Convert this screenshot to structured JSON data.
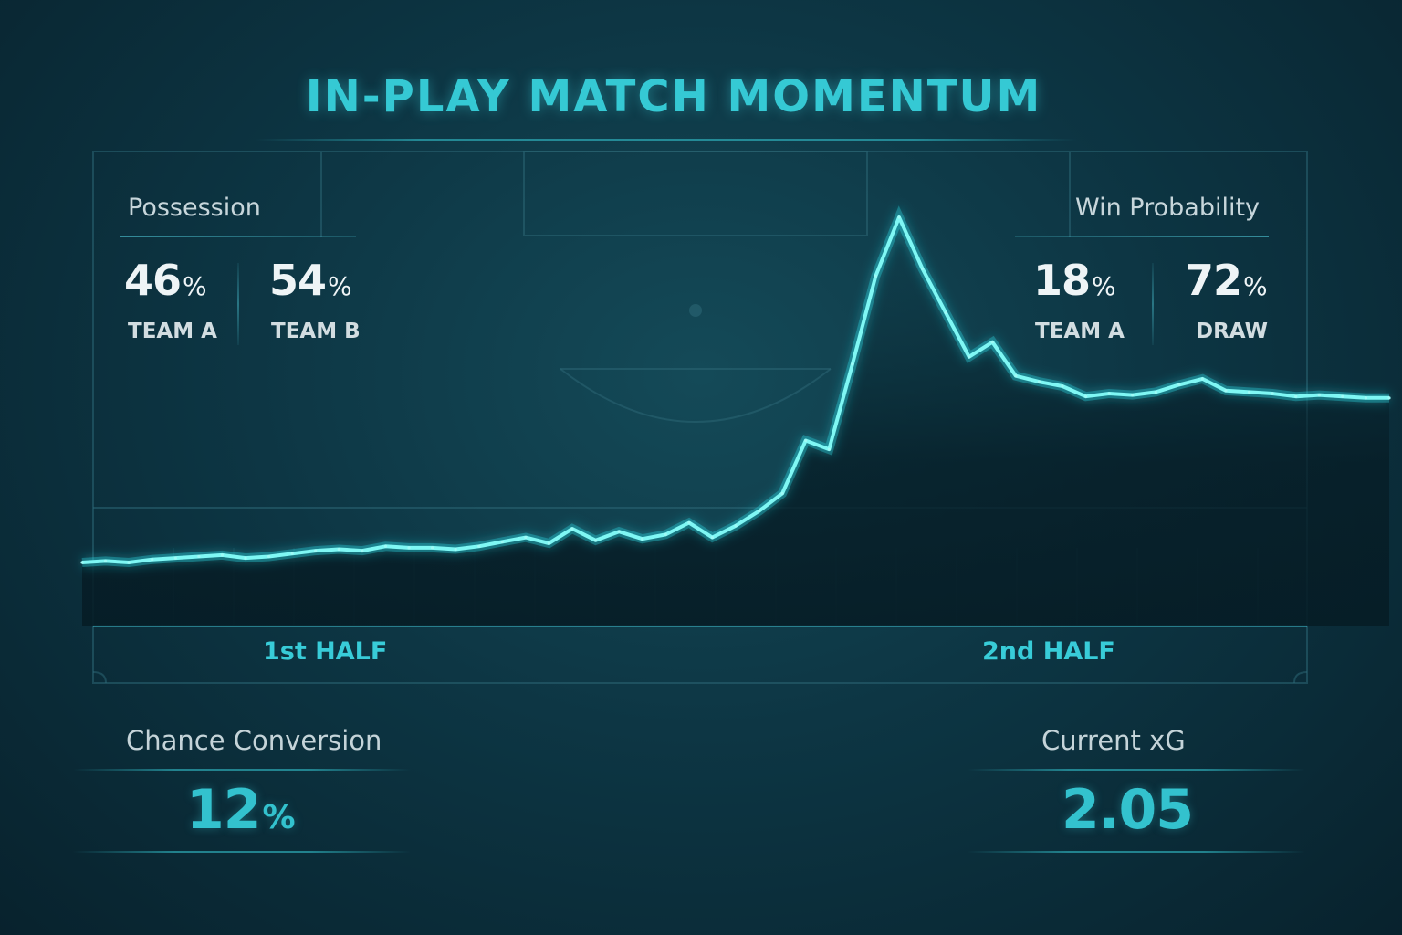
{
  "title": "IN-PLAY MATCH MOMENTUM",
  "possession": {
    "label": "Possession",
    "team_a": {
      "value": "46",
      "unit": "%",
      "name": "TEAM A"
    },
    "team_b": {
      "value": "54",
      "unit": "%",
      "name": "TEAM B"
    }
  },
  "win_probability": {
    "label": "Win Probability",
    "team_a": {
      "value": "18",
      "unit": "%",
      "name": "TEAM A"
    },
    "draw": {
      "value": "72",
      "unit": "%",
      "name": "DRAW"
    }
  },
  "halves": {
    "first": "1st HALF",
    "second": "2nd HALF"
  },
  "chance_conversion": {
    "label": "Chance Conversion",
    "value": "12",
    "unit": "%"
  },
  "current_xg": {
    "label": "Current xG",
    "value": "2.05"
  },
  "colors": {
    "accent": "#35c9d4",
    "line": "#5ff0f0",
    "background": "#0d3644"
  },
  "chart_data": {
    "type": "line",
    "title": "IN-PLAY MATCH MOMENTUM",
    "xlabel": "",
    "ylabel": "",
    "x": [
      0,
      4,
      8,
      12,
      16,
      20,
      24,
      28,
      32,
      36,
      40,
      44,
      48,
      52,
      56,
      60,
      64,
      68,
      72,
      76,
      80,
      84,
      88,
      92,
      96,
      100,
      104,
      108,
      112,
      116,
      120,
      124,
      128,
      132,
      136,
      140,
      144,
      148,
      152,
      156,
      160,
      164,
      168,
      172,
      176,
      180,
      184,
      188,
      192,
      196,
      200,
      204,
      208,
      212,
      216,
      220,
      224
    ],
    "values": [
      5,
      6,
      5,
      7,
      8,
      9,
      10,
      8,
      9,
      11,
      13,
      14,
      13,
      16,
      15,
      15,
      14,
      16,
      19,
      22,
      18,
      28,
      20,
      26,
      21,
      24,
      32,
      22,
      30,
      40,
      52,
      88,
      82,
      140,
      200,
      240,
      205,
      175,
      145,
      155,
      132,
      128,
      125,
      118,
      120,
      119,
      121,
      126,
      130,
      122,
      121,
      120,
      118,
      119,
      118,
      117,
      117
    ],
    "categories": [
      "1st HALF",
      "2nd HALF"
    ],
    "xlim": [
      0,
      224
    ],
    "ylim": [
      0,
      240
    ],
    "grid": false,
    "legend": "none"
  }
}
